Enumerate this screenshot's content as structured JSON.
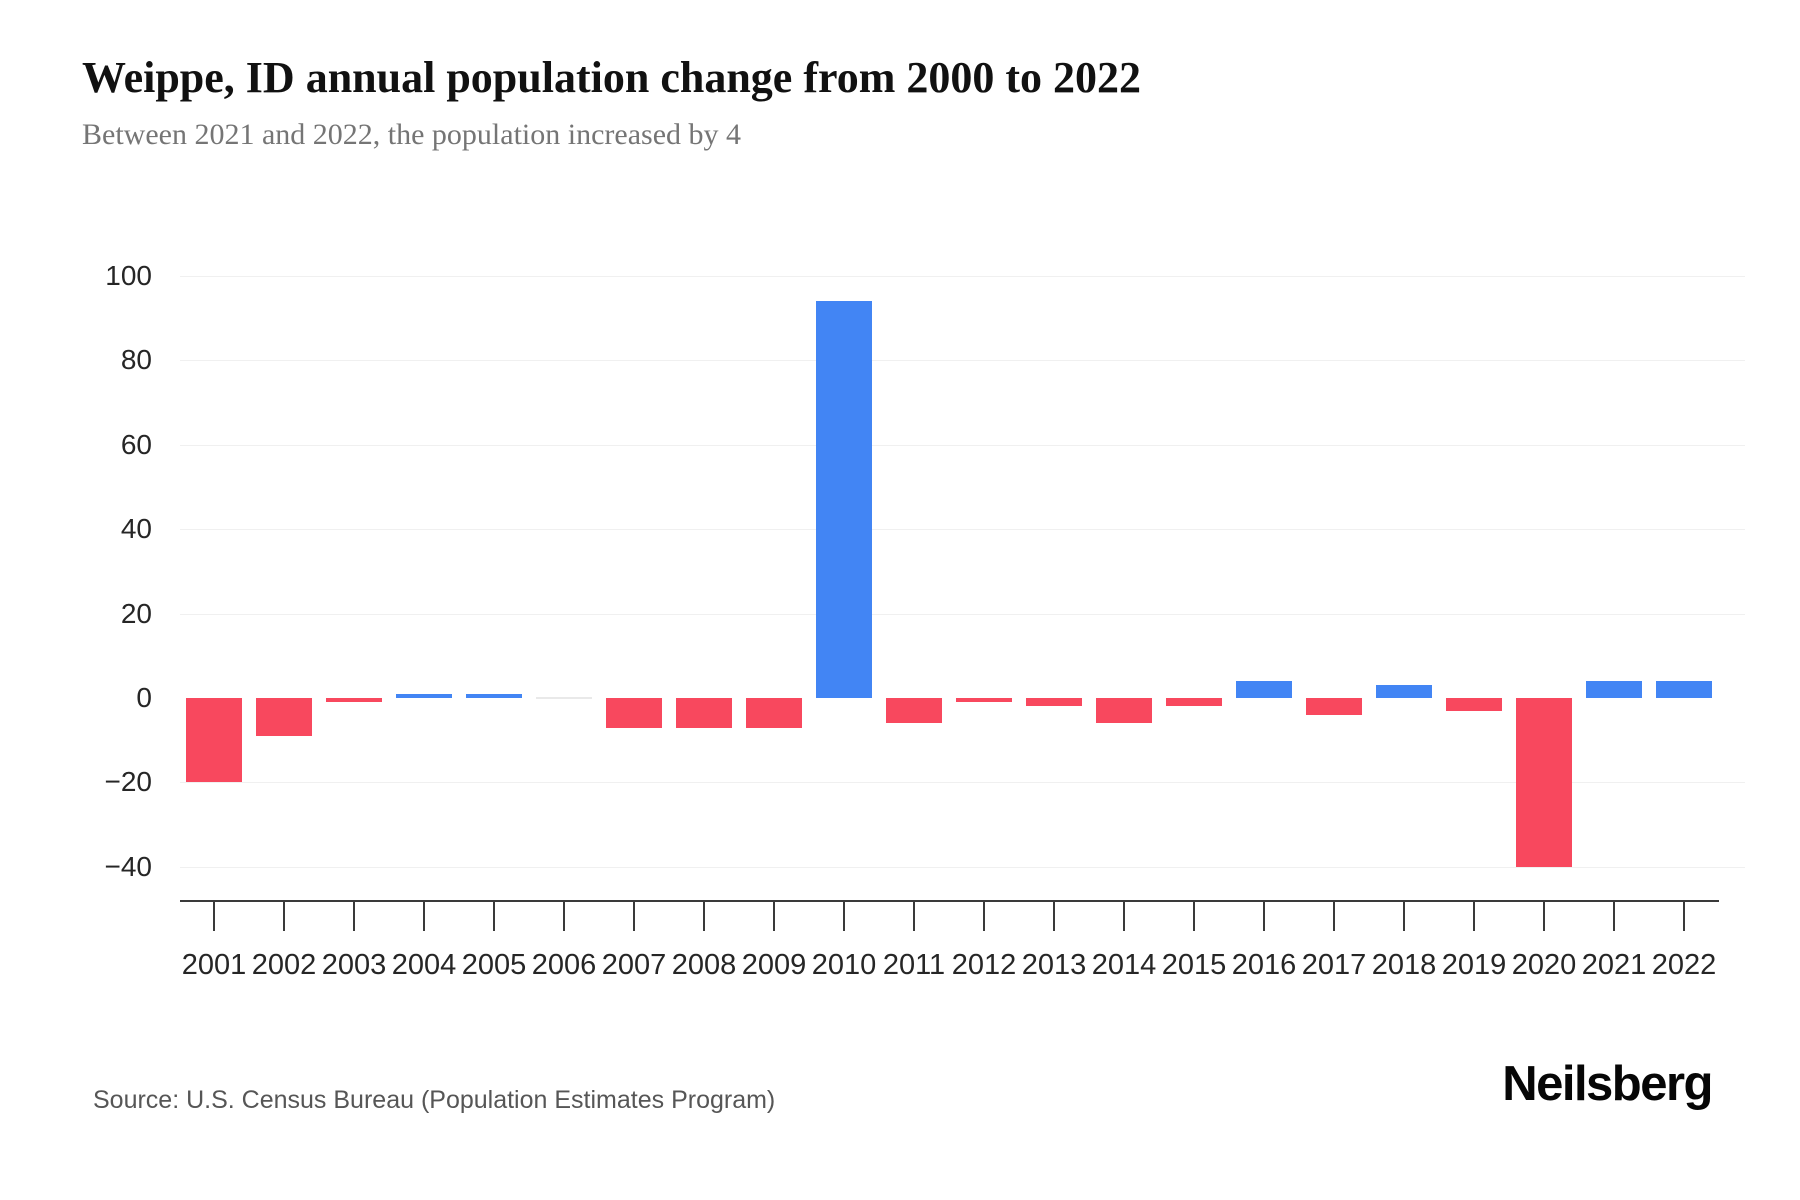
{
  "header": {
    "title": "Weippe, ID annual population change from 2000 to 2022",
    "subtitle": "Between 2021 and 2022, the population increased by 4"
  },
  "footer": {
    "source": "Source: U.S. Census Bureau (Population Estimates Program)",
    "brand": "Neilsberg"
  },
  "colors": {
    "positive_bar": "#4285F4",
    "negative_bar": "#F8485E",
    "zero_bar": "#e9e9e9",
    "gridline": "#f0f0f0",
    "axis": "#3a3a3a"
  },
  "chart_data": {
    "type": "bar",
    "title": "Weippe, ID annual population change from 2000 to 2022",
    "subtitle": "Between 2021 and 2022, the population increased by 4",
    "xlabel": "",
    "ylabel": "",
    "categories": [
      "2001",
      "2002",
      "2003",
      "2004",
      "2005",
      "2006",
      "2007",
      "2008",
      "2009",
      "2010",
      "2011",
      "2012",
      "2013",
      "2014",
      "2015",
      "2016",
      "2017",
      "2018",
      "2019",
      "2020",
      "2021",
      "2022"
    ],
    "values": [
      -20,
      -9,
      -1,
      1,
      1,
      0,
      -7,
      -7,
      -7,
      94,
      -6,
      -1,
      -2,
      -6,
      -2,
      4,
      -4,
      3,
      -3,
      -40,
      4,
      4
    ],
    "ylim": [
      -40,
      100
    ],
    "yticks": [
      100,
      80,
      60,
      40,
      20,
      0,
      -20,
      -40
    ],
    "grid": true,
    "legend": false,
    "positive_color_meaning": "population increase",
    "negative_color_meaning": "population decrease"
  }
}
